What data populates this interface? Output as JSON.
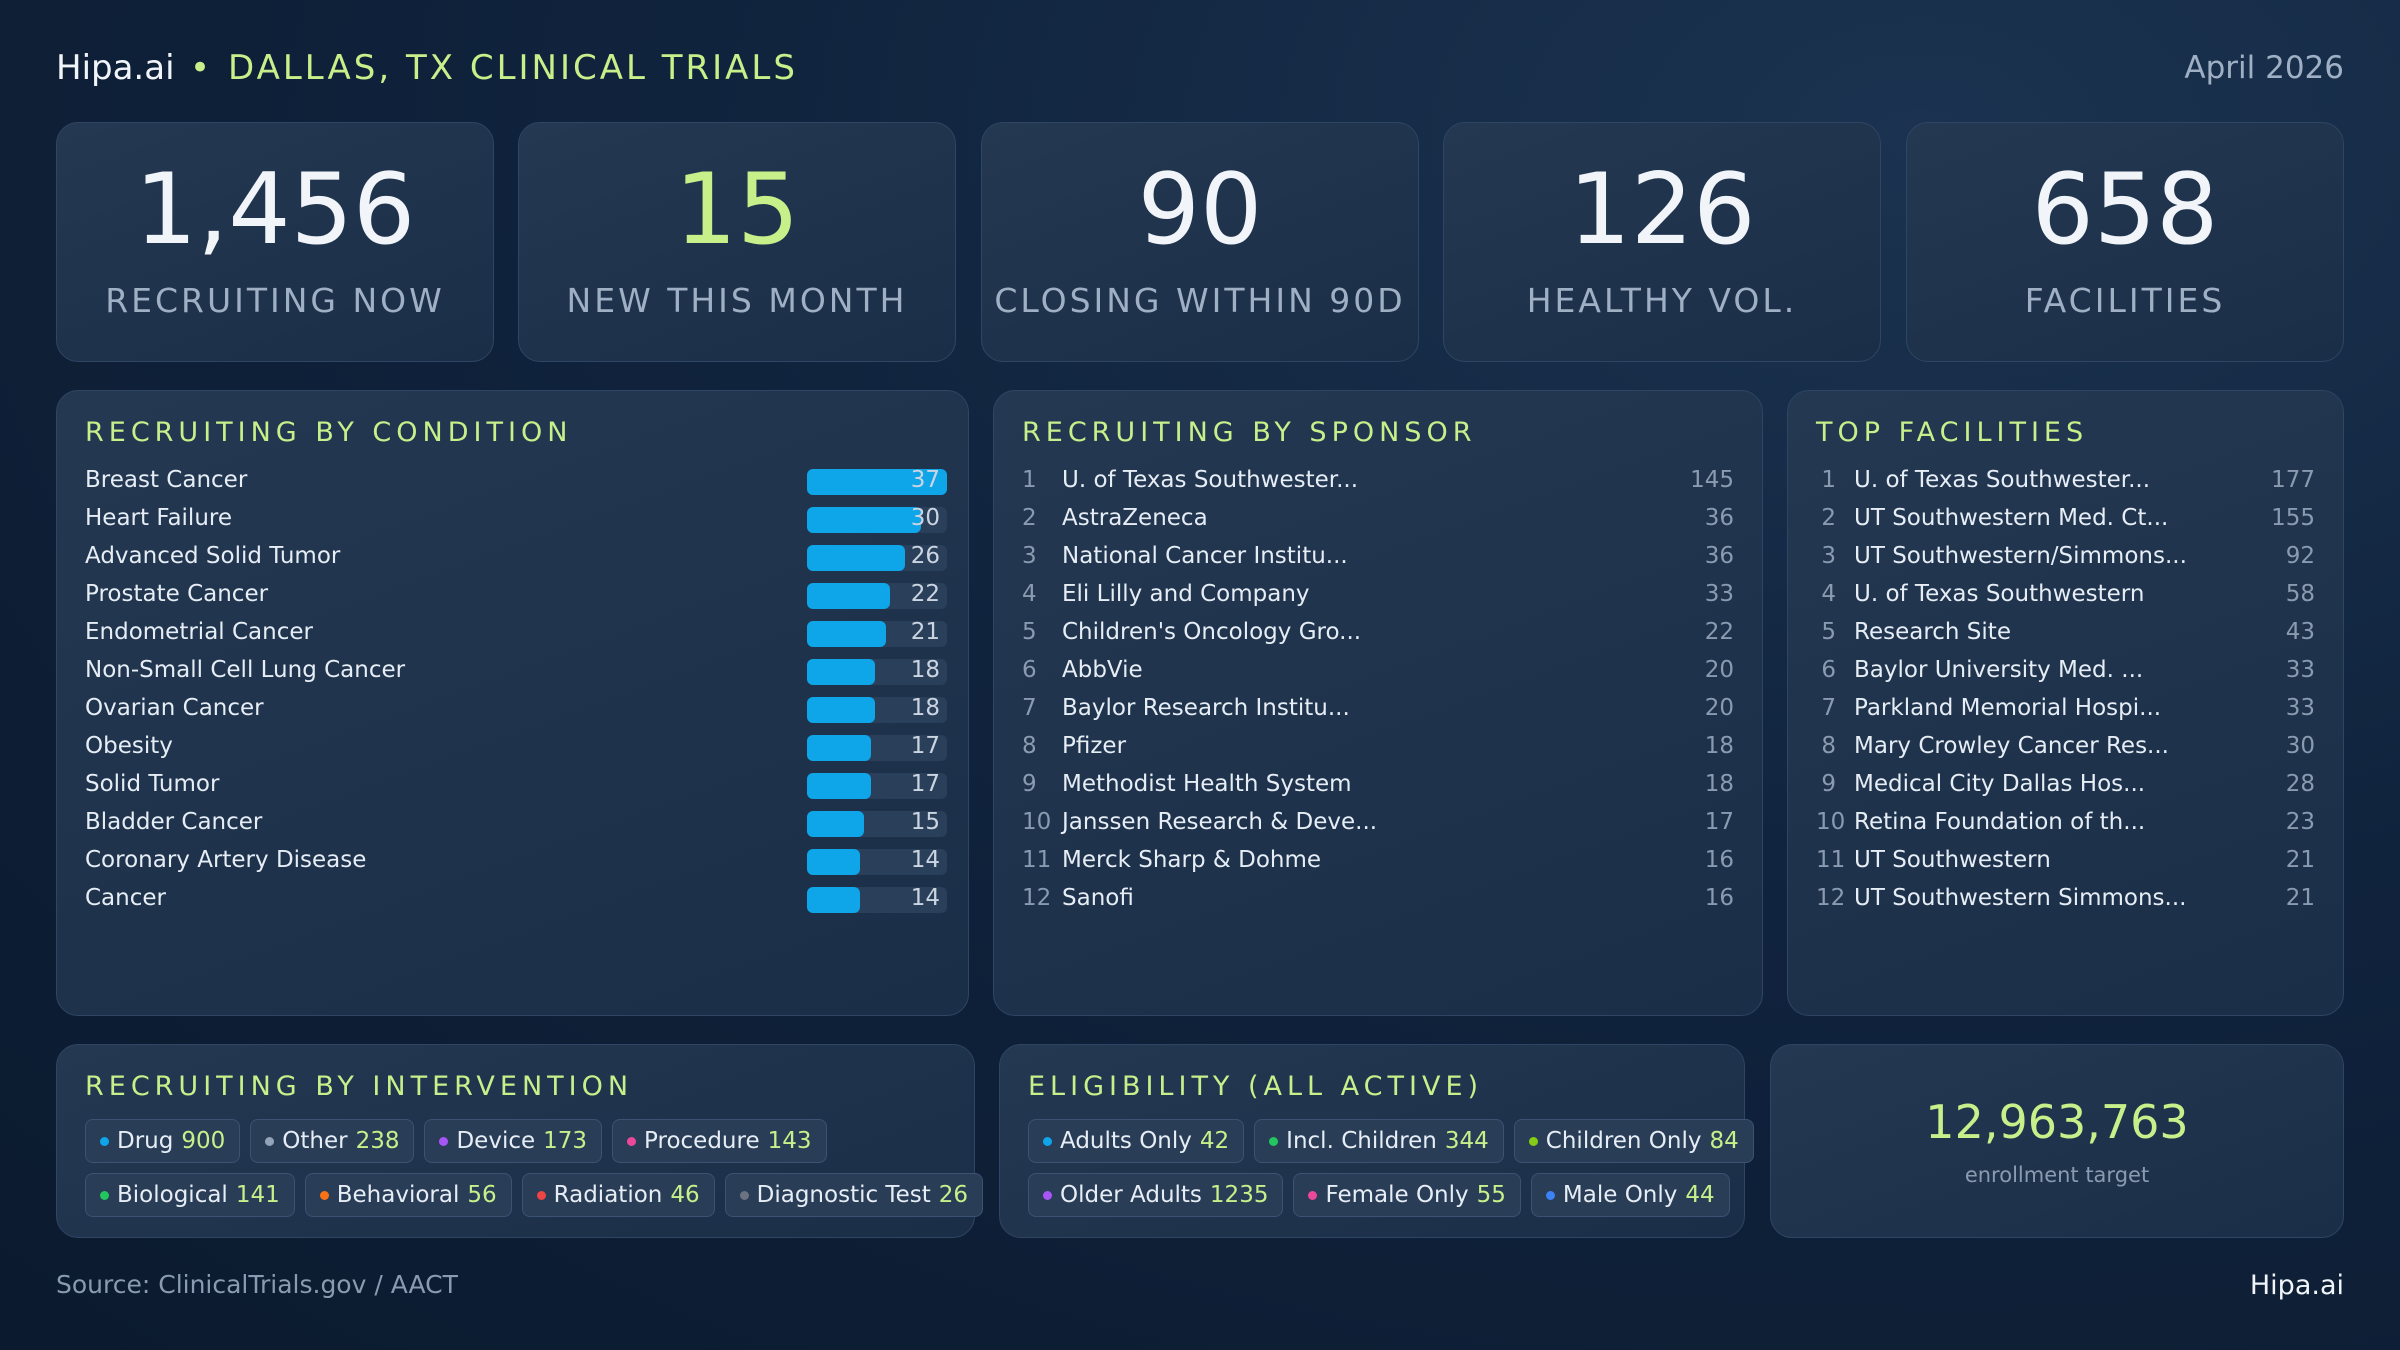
{
  "header": {
    "brand": "Hipa.ai",
    "separator": "•",
    "region": "DALLAS, TX CLINICAL TRIALS",
    "date": "April 2026"
  },
  "kpis": [
    {
      "value": "1,456",
      "label": "RECRUITING NOW"
    },
    {
      "value": "15",
      "label": "NEW THIS MONTH"
    },
    {
      "value": "90",
      "label": "CLOSING WITHIN 90D"
    },
    {
      "value": "126",
      "label": "HEALTHY VOL."
    },
    {
      "value": "658",
      "label": "FACILITIES"
    }
  ],
  "conditions": {
    "title": "RECRUITING BY CONDITION",
    "max": 37,
    "items": [
      {
        "name": "Breast Cancer",
        "count": 37
      },
      {
        "name": "Heart Failure",
        "count": 30
      },
      {
        "name": "Advanced Solid Tumor",
        "count": 26
      },
      {
        "name": "Prostate Cancer",
        "count": 22
      },
      {
        "name": "Endometrial Cancer",
        "count": 21
      },
      {
        "name": "Non-Small Cell Lung Cancer",
        "count": 18
      },
      {
        "name": "Ovarian Cancer",
        "count": 18
      },
      {
        "name": "Obesity",
        "count": 17
      },
      {
        "name": "Solid Tumor",
        "count": 17
      },
      {
        "name": "Bladder Cancer",
        "count": 15
      },
      {
        "name": "Coronary Artery Disease",
        "count": 14
      },
      {
        "name": "Cancer",
        "count": 14
      }
    ]
  },
  "sponsors": {
    "title": "RECRUITING BY SPONSOR",
    "items": [
      {
        "rank": "1",
        "name": "U. of Texas Southwester...",
        "count": "145"
      },
      {
        "rank": "2",
        "name": "AstraZeneca",
        "count": "36"
      },
      {
        "rank": "3",
        "name": "National Cancer Institu...",
        "count": "36"
      },
      {
        "rank": "4",
        "name": "Eli Lilly and Company",
        "count": "33"
      },
      {
        "rank": "5",
        "name": "Children's Oncology Gro...",
        "count": "22"
      },
      {
        "rank": "6",
        "name": "AbbVie",
        "count": "20"
      },
      {
        "rank": "7",
        "name": "Baylor Research Institu...",
        "count": "20"
      },
      {
        "rank": "8",
        "name": "Pfizer",
        "count": "18"
      },
      {
        "rank": "9",
        "name": "Methodist Health System",
        "count": "18"
      },
      {
        "rank": "10",
        "name": "Janssen Research & Deve...",
        "count": "17"
      },
      {
        "rank": "11",
        "name": "Merck Sharp & Dohme",
        "count": "16"
      },
      {
        "rank": "12",
        "name": "Sanofi",
        "count": "16"
      }
    ]
  },
  "facilities": {
    "title": "TOP FACILITIES",
    "items": [
      {
        "rank": "1",
        "name": "U. of Texas Southwester...",
        "count": "177"
      },
      {
        "rank": "2",
        "name": "UT Southwestern Med. Ct...",
        "count": "155"
      },
      {
        "rank": "3",
        "name": "UT Southwestern/Simmons...",
        "count": "92"
      },
      {
        "rank": "4",
        "name": "U. of Texas Southwestern",
        "count": "58"
      },
      {
        "rank": "5",
        "name": "Research Site",
        "count": "43"
      },
      {
        "rank": "6",
        "name": "Baylor University Med. ...",
        "count": "33"
      },
      {
        "rank": "7",
        "name": "Parkland Memorial Hospi...",
        "count": "33"
      },
      {
        "rank": "8",
        "name": "Mary Crowley Cancer Res...",
        "count": "30"
      },
      {
        "rank": "9",
        "name": "Medical City Dallas Hos...",
        "count": "28"
      },
      {
        "rank": "10",
        "name": "Retina Foundation of th...",
        "count": "23"
      },
      {
        "rank": "11",
        "name": "UT Southwestern",
        "count": "21"
      },
      {
        "rank": "12",
        "name": "UT Southwestern Simmons...",
        "count": "21"
      }
    ]
  },
  "interventions": {
    "title": "RECRUITING BY INTERVENTION",
    "rows": [
      [
        {
          "label": "Drug",
          "count": "900",
          "color": "#0ea5e9"
        },
        {
          "label": "Other",
          "count": "238",
          "color": "#94a3b8"
        },
        {
          "label": "Device",
          "count": "173",
          "color": "#a855f7"
        },
        {
          "label": "Procedure",
          "count": "143",
          "color": "#ec4899"
        }
      ],
      [
        {
          "label": "Biological",
          "count": "141",
          "color": "#22c55e"
        },
        {
          "label": "Behavioral",
          "count": "56",
          "color": "#f97316"
        },
        {
          "label": "Radiation",
          "count": "46",
          "color": "#ef4444"
        },
        {
          "label": "Diagnostic Test",
          "count": "26",
          "color": "#6b7280"
        }
      ]
    ]
  },
  "eligibility": {
    "title": "ELIGIBILITY (ALL ACTIVE)",
    "rows": [
      [
        {
          "label": "Adults Only",
          "count": "42",
          "color": "#0ea5e9"
        },
        {
          "label": "Incl. Children",
          "count": "344",
          "color": "#22c55e"
        },
        {
          "label": "Children Only",
          "count": "84",
          "color": "#84cc16"
        }
      ],
      [
        {
          "label": "Older Adults",
          "count": "1235",
          "color": "#a855f7"
        },
        {
          "label": "Female Only",
          "count": "55",
          "color": "#ec4899"
        },
        {
          "label": "Male Only",
          "count": "44",
          "color": "#3b82f6"
        }
      ]
    ]
  },
  "enrollment": {
    "value": "12,963,763",
    "label": "enrollment target"
  },
  "footer": {
    "source": "Source: ClinicalTrials.gov / AACT",
    "brand": "Hipa.ai"
  }
}
